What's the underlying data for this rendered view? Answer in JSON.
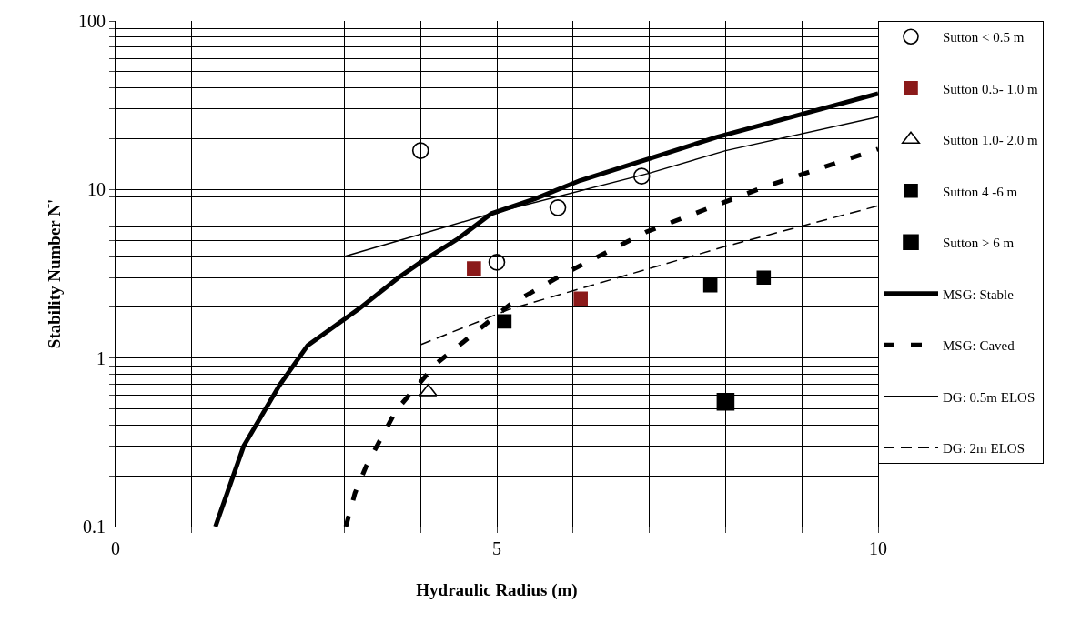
{
  "chart_data": {
    "type": "scatter",
    "xlabel": "Hydraulic Radius (m)",
    "ylabel": "Stability Number N'",
    "log": "y",
    "xlim": [
      0,
      10
    ],
    "ylim": [
      0.1,
      100
    ],
    "xticks": [
      0,
      {
        "value": 1,
        "label": null
      },
      {
        "value": 2,
        "label": null
      },
      {
        "value": 3,
        "label": null
      },
      {
        "value": 4,
        "label": null
      },
      5,
      {
        "value": 6,
        "label": null
      },
      {
        "value": 7,
        "label": null
      },
      {
        "value": 8,
        "label": null
      },
      {
        "value": 9,
        "label": null
      },
      10
    ],
    "yticks": [
      0.1,
      {
        "value": 0.2,
        "label": null
      },
      {
        "value": 0.3,
        "label": null
      },
      {
        "value": 0.4,
        "label": null
      },
      {
        "value": 0.5,
        "label": null
      },
      {
        "value": 0.6,
        "label": null
      },
      {
        "value": 0.7,
        "label": null
      },
      {
        "value": 0.8,
        "label": null
      },
      {
        "value": 0.9,
        "label": null
      },
      1,
      {
        "value": 2,
        "label": null
      },
      {
        "value": 3,
        "label": null
      },
      {
        "value": 4,
        "label": null
      },
      {
        "value": 5,
        "label": null
      },
      {
        "value": 6,
        "label": null
      },
      {
        "value": 7,
        "label": null
      },
      {
        "value": 8,
        "label": null
      },
      {
        "value": 9,
        "label": null
      },
      10,
      {
        "value": 20,
        "label": null
      },
      {
        "value": 30,
        "label": null
      },
      {
        "value": 40,
        "label": null
      },
      {
        "value": 50,
        "label": null
      },
      {
        "value": 60,
        "label": null
      },
      {
        "value": 70,
        "label": null
      },
      {
        "value": 80,
        "label": null
      },
      {
        "value": 90,
        "label": null
      },
      100
    ],
    "grid": true,
    "legend": "right",
    "series": [
      {
        "name": "Sutton < 0.5 m",
        "marker": "circle",
        "color": "#000000",
        "x": [
          4.0,
          5.0,
          5.8,
          6.9
        ],
        "values": [
          17,
          3.7,
          7.8,
          12
        ]
      },
      {
        "name": "Sutton 0.5- 1.0 m",
        "marker": "square",
        "color": "#8b1a1a",
        "x": [
          4.7,
          6.1
        ],
        "values": [
          3.4,
          2.25
        ]
      },
      {
        "name": "Sutton 1.0- 2.0 m",
        "marker": "triangle",
        "color": "#000000",
        "x": [
          4.1
        ],
        "values": [
          0.63
        ]
      },
      {
        "name": "Sutton 4 -6 m",
        "marker": "square",
        "color": "#000000",
        "x": [
          5.1,
          7.8,
          8.5
        ],
        "values": [
          1.65,
          2.7,
          3.0
        ]
      },
      {
        "name": "Sutton > 6 m",
        "marker": "square",
        "color": "#000000",
        "x": [
          8.0
        ],
        "values": [
          0.55
        ]
      },
      {
        "name": "MSG: Stable",
        "type": "line",
        "line_style": "solid",
        "color": "#000000",
        "x": [
          1.31,
          1.68,
          2.15,
          2.52,
          3.2,
          3.71,
          4.0,
          4.49,
          4.93,
          5.5,
          6.09,
          7.88,
          10
        ],
        "values": [
          0.1,
          0.3,
          0.69,
          1.19,
          1.97,
          3.0,
          3.7,
          5.1,
          7.2,
          8.8,
          11.3,
          20.4,
          37
        ]
      },
      {
        "name": "MSG: Caved",
        "type": "line",
        "line_style": "dashed",
        "color": "#000000",
        "x": [
          3.02,
          3.14,
          3.29,
          3.68,
          4.21,
          5.17,
          5.85,
          6.96,
          8.47,
          10
        ],
        "values": [
          0.1,
          0.158,
          0.23,
          0.49,
          0.93,
          2.07,
          3.1,
          5.6,
          10.2,
          17.4
        ]
      },
      {
        "name": "DG: 0.5m ELOS",
        "type": "line",
        "line_style": "solid",
        "color": "#000000",
        "x": [
          3.0,
          4.93,
          7.0,
          8.0,
          10
        ],
        "values": [
          4,
          7.2,
          12.5,
          17,
          27
        ]
      },
      {
        "name": "DG: 2m ELOS",
        "type": "line",
        "line_style": "dashed",
        "color": "#000000",
        "x": [
          4.0,
          5.17,
          8.0,
          10
        ],
        "values": [
          1.2,
          1.95,
          4.6,
          8.0
        ]
      }
    ]
  }
}
